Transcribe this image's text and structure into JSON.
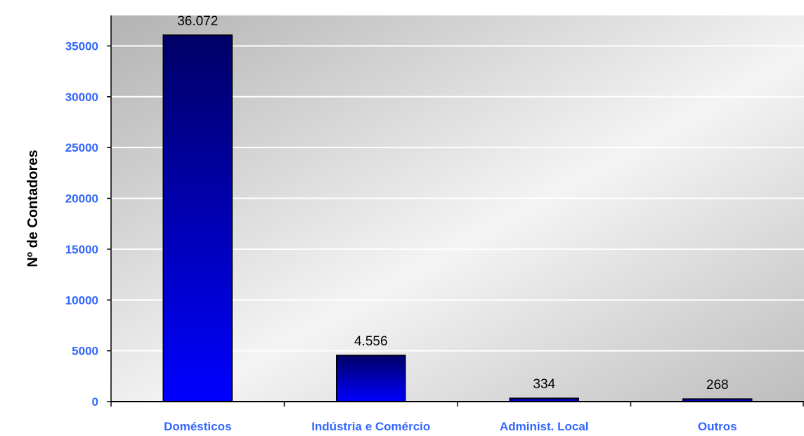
{
  "chart_data": {
    "type": "bar",
    "title": "",
    "xlabel": "",
    "ylabel": "Nº de Contadores",
    "categories": [
      "Domésticos",
      "Indústria e Comércio",
      "Administ. Local",
      "Outros"
    ],
    "values": [
      36072,
      4556,
      334,
      268
    ],
    "data_labels": [
      "36.072",
      "4.556",
      "334",
      "268"
    ],
    "ylim": [
      0,
      38000
    ],
    "yticks": [
      0,
      5000,
      10000,
      15000,
      20000,
      25000,
      30000,
      35000
    ],
    "grid": true,
    "legend": "none",
    "colors": {
      "bar_top": "#000066",
      "bar_bottom": "#0000ff",
      "tick_label": "#3366ff",
      "plot_bg_dark": "#bdbdbd",
      "plot_bg_light": "#ffffff",
      "gridline": "#ffffff",
      "axis": "#000000"
    }
  }
}
